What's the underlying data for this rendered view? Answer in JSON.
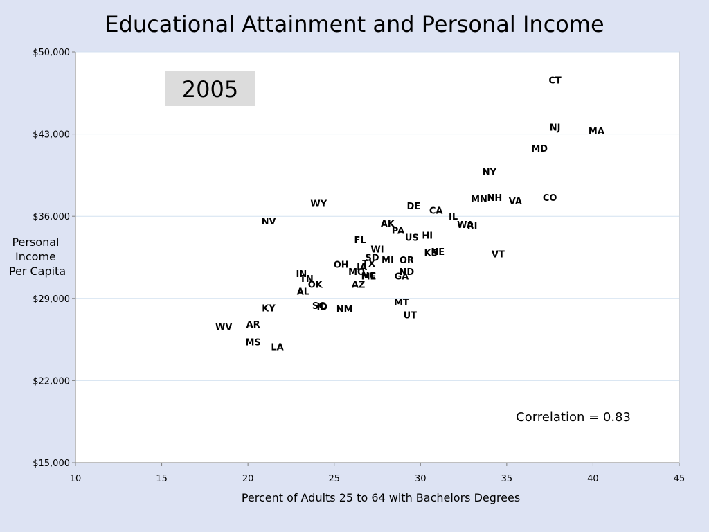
{
  "chart_data": {
    "type": "scatter",
    "title": "Educational Attainment and Personal Income",
    "xlabel": "Percent of Adults 25 to 64 with Bachelors Degrees",
    "ylabel": [
      "Personal",
      "Income",
      "Per Capita"
    ],
    "xlim": [
      10,
      45
    ],
    "ylim": [
      15000,
      50000
    ],
    "x_ticks": [
      10,
      15,
      20,
      25,
      30,
      35,
      40,
      45
    ],
    "y_ticks": [
      15000,
      22000,
      29000,
      36000,
      43000,
      50000
    ],
    "y_tick_labels": [
      "$15,000",
      "$22,000",
      "$29,000",
      "$36,000",
      "$43,000",
      "$50,000"
    ],
    "grid": "horizontal",
    "year_label": "2005",
    "annotation": "Correlation = 0.83",
    "highlight_colors": {
      "US": "#f5c000",
      "MT": "#e00000"
    },
    "points": [
      {
        "label": "CT",
        "x": 37.8,
        "y": 47600
      },
      {
        "label": "NJ",
        "x": 37.8,
        "y": 43600
      },
      {
        "label": "MA",
        "x": 40.2,
        "y": 43300
      },
      {
        "label": "MD",
        "x": 36.9,
        "y": 41800
      },
      {
        "label": "NY",
        "x": 34.0,
        "y": 39800
      },
      {
        "label": "CO",
        "x": 37.5,
        "y": 37600
      },
      {
        "label": "MN",
        "x": 33.4,
        "y": 37500
      },
      {
        "label": "NH",
        "x": 34.3,
        "y": 37600
      },
      {
        "label": "VA",
        "x": 35.5,
        "y": 37300
      },
      {
        "label": "WY",
        "x": 24.1,
        "y": 37100
      },
      {
        "label": "DE",
        "x": 29.6,
        "y": 36900
      },
      {
        "label": "CA",
        "x": 30.9,
        "y": 36500
      },
      {
        "label": "IL",
        "x": 31.9,
        "y": 36000
      },
      {
        "label": "NV",
        "x": 21.2,
        "y": 35600
      },
      {
        "label": "AK",
        "x": 28.1,
        "y": 35400
      },
      {
        "label": "WA",
        "x": 32.6,
        "y": 35300
      },
      {
        "label": "RI",
        "x": 33.0,
        "y": 35200
      },
      {
        "label": "PA",
        "x": 28.7,
        "y": 34800
      },
      {
        "label": "HI",
        "x": 30.4,
        "y": 34400
      },
      {
        "label": "US",
        "x": 29.5,
        "y": 34200
      },
      {
        "label": "FL",
        "x": 26.5,
        "y": 34000
      },
      {
        "label": "WI",
        "x": 27.5,
        "y": 33200
      },
      {
        "label": "KS",
        "x": 30.6,
        "y": 32900
      },
      {
        "label": "NE",
        "x": 31.0,
        "y": 33000
      },
      {
        "label": "VT",
        "x": 34.5,
        "y": 32800
      },
      {
        "label": "SD",
        "x": 27.2,
        "y": 32500
      },
      {
        "label": "MI",
        "x": 28.1,
        "y": 32300
      },
      {
        "label": "OR",
        "x": 29.2,
        "y": 32300
      },
      {
        "label": "TX",
        "x": 27.0,
        "y": 32000
      },
      {
        "label": "OH",
        "x": 25.4,
        "y": 31900
      },
      {
        "label": "IA",
        "x": 26.6,
        "y": 31700
      },
      {
        "label": "MO",
        "x": 26.3,
        "y": 31300
      },
      {
        "label": "ND",
        "x": 29.2,
        "y": 31300
      },
      {
        "label": "NC",
        "x": 27.0,
        "y": 31000
      },
      {
        "label": "ME",
        "x": 27.0,
        "y": 30900
      },
      {
        "label": "GA",
        "x": 28.9,
        "y": 30900
      },
      {
        "label": "IN",
        "x": 23.1,
        "y": 31100
      },
      {
        "label": "TN",
        "x": 23.4,
        "y": 30700
      },
      {
        "label": "OK",
        "x": 23.9,
        "y": 30200
      },
      {
        "label": "AZ",
        "x": 26.4,
        "y": 30200
      },
      {
        "label": "AL",
        "x": 23.2,
        "y": 29600
      },
      {
        "label": "MT",
        "x": 28.9,
        "y": 28700
      },
      {
        "label": "SC",
        "x": 24.1,
        "y": 28400
      },
      {
        "label": "ID",
        "x": 24.3,
        "y": 28300
      },
      {
        "label": "KY",
        "x": 21.2,
        "y": 28200
      },
      {
        "label": "NM",
        "x": 25.6,
        "y": 28100
      },
      {
        "label": "UT",
        "x": 29.4,
        "y": 27600
      },
      {
        "label": "AR",
        "x": 20.3,
        "y": 26800
      },
      {
        "label": "WV",
        "x": 18.6,
        "y": 26600
      },
      {
        "label": "MS",
        "x": 20.3,
        "y": 25300
      },
      {
        "label": "LA",
        "x": 21.7,
        "y": 24900
      }
    ]
  }
}
